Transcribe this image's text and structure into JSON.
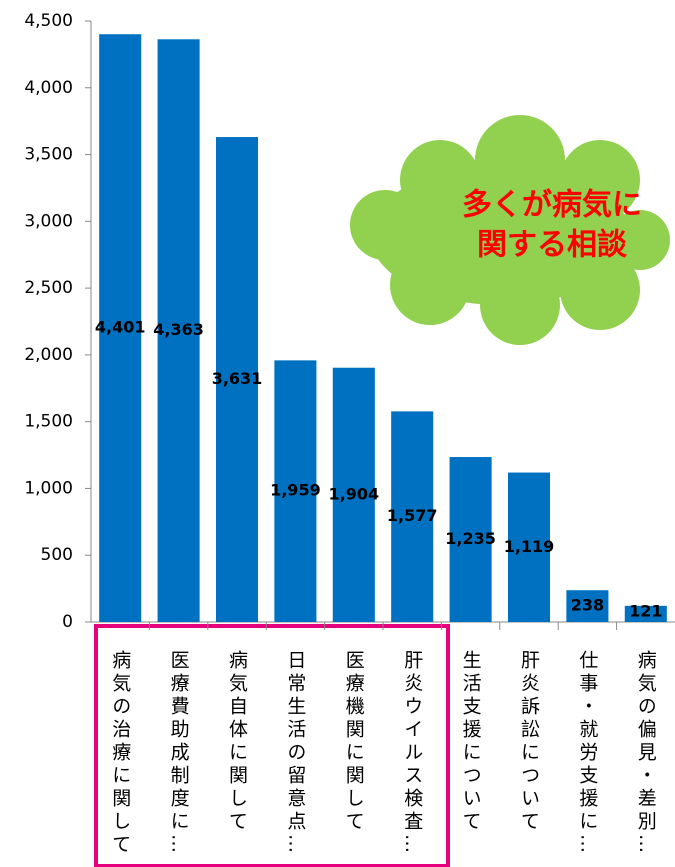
{
  "chart_data": {
    "type": "bar",
    "categories": [
      "病気の治療に関して",
      "医療費助成制度に…",
      "病気自体に関して",
      "日常生活の留意点…",
      "医療機関に関して",
      "肝炎ウイルス検査…",
      "生活支援について",
      "肝炎訴訟について",
      "仕事・就労支援に…",
      "病気の偏見・差別…"
    ],
    "values": [
      4401,
      4363,
      3631,
      1959,
      1904,
      1577,
      1235,
      1119,
      238,
      121
    ],
    "value_labels": [
      "4,401",
      "4,363",
      "3,631",
      "1,959",
      "1,904",
      "1,577",
      "1,235",
      "1,119",
      "238",
      "121"
    ],
    "color": "#0070c0",
    "ylim": [
      0,
      4500
    ],
    "yticks": [
      0,
      500,
      {
        "value": 1000,
        "label": "1,000"
      },
      {
        "value": 1500,
        "label": "1,500"
      },
      {
        "value": 2000,
        "label": "2,000"
      },
      {
        "value": 2500,
        "label": "2,500"
      },
      {
        "value": 3000,
        "label": "3,000"
      },
      {
        "value": 3500,
        "label": "3,500"
      },
      {
        "value": 4000,
        "label": "4,000"
      },
      {
        "value": 4500,
        "label": "4,500"
      }
    ],
    "annotation": [
      "多くが病気に",
      "関する相談"
    ]
  }
}
